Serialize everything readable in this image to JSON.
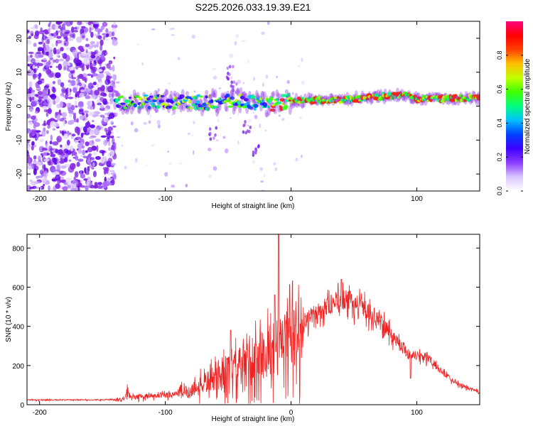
{
  "title": "S225.2026.033.19.39.E21",
  "chart_data": [
    {
      "type": "heatmap",
      "xlabel": "Height of straight line (km)",
      "ylabel": "Frequency (Hz)",
      "xlim": [
        -210,
        150
      ],
      "ylim": [
        -25,
        25
      ],
      "xticks": [
        -200,
        -100,
        0,
        100
      ],
      "yticks": [
        -20,
        -10,
        0,
        10,
        20
      ],
      "signal": {
        "noise_until_x": -140,
        "ridge_start_x": -140,
        "ridge_center_hz": [
          [
            -140,
            1
          ],
          [
            -100,
            1.5
          ],
          [
            -60,
            1
          ],
          [
            -40,
            1.5
          ],
          [
            -20,
            0.5
          ],
          [
            0,
            1.5
          ],
          [
            50,
            2
          ],
          [
            90,
            3.5
          ],
          [
            100,
            2
          ],
          [
            150,
            2.5
          ]
        ]
      },
      "colorbar": {
        "label": "Normalized spectral amplitude",
        "range": [
          0,
          1
        ],
        "ticks": [
          "0.0",
          "0.2",
          "0.4",
          "0.6",
          "0.8"
        ],
        "colors": [
          "#ffffff",
          "#d9c6ff",
          "#8c3cff",
          "#3c00ff",
          "#0040ff",
          "#00c0ff",
          "#00ff80",
          "#40ff00",
          "#c0ff00",
          "#ffc000",
          "#ff4000",
          "#ff0000",
          "#ff0080"
        ]
      }
    },
    {
      "type": "line",
      "xlabel": "Height of straight line (km)",
      "ylabel": "SNR (10 * v/v)",
      "xlim": [
        -210,
        150
      ],
      "ylim": [
        0,
        870
      ],
      "xticks": [
        -200,
        -100,
        0,
        100
      ],
      "yticks": [
        0,
        200,
        400,
        600,
        800
      ],
      "color": "#ee2222",
      "envelope": [
        [
          -210,
          25
        ],
        [
          -150,
          25
        ],
        [
          -132,
          30
        ],
        [
          -130,
          95
        ],
        [
          -128,
          40
        ],
        [
          -100,
          50
        ],
        [
          -80,
          80
        ],
        [
          -60,
          150
        ],
        [
          -40,
          220
        ],
        [
          -20,
          290
        ],
        [
          0,
          380
        ],
        [
          20,
          480
        ],
        [
          40,
          550
        ],
        [
          55,
          520
        ],
        [
          70,
          440
        ],
        [
          85,
          330
        ],
        [
          95,
          260
        ],
        [
          108,
          250
        ],
        [
          120,
          170
        ],
        [
          135,
          100
        ],
        [
          150,
          65
        ]
      ],
      "spikes": [
        [
          -10,
          870
        ],
        [
          40,
          640
        ],
        [
          -48,
          380
        ],
        [
          -13,
          560
        ]
      ],
      "dips": [
        [
          95,
          135
        ]
      ]
    }
  ]
}
